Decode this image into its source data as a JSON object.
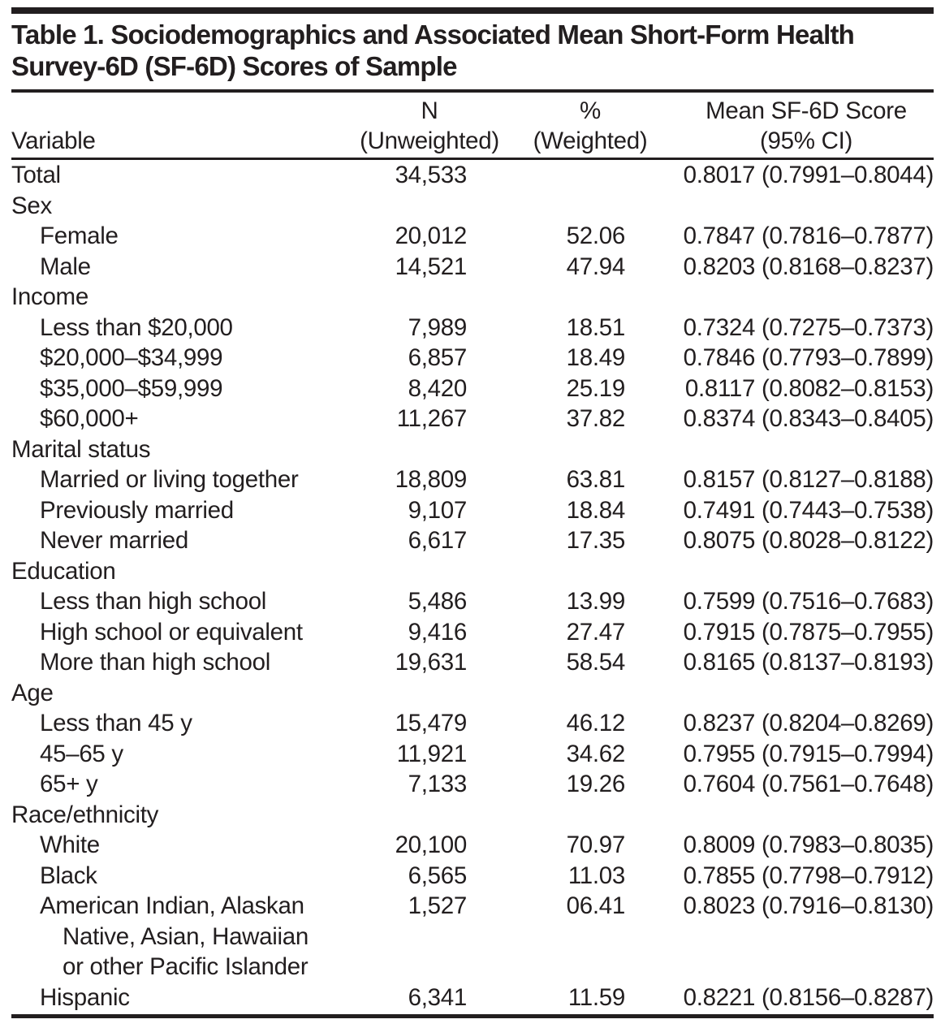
{
  "title": "Table 1. Sociodemographics and Associated Mean Short-Form Health\nSurvey-6D (SF-6D) Scores of Sample",
  "columns": {
    "variable": "Variable",
    "n": [
      "N",
      "(Unweighted)"
    ],
    "pct": [
      "%",
      "(Weighted)"
    ],
    "mean": [
      "Mean SF-6D Score",
      "(95% CI)"
    ]
  },
  "rows": [
    {
      "type": "total",
      "label": "Total",
      "n": "34,533",
      "pct": "",
      "ci": "0.8017 (0.7991–0.8044)"
    },
    {
      "type": "group",
      "label": "Sex",
      "n": "",
      "pct": "",
      "ci": ""
    },
    {
      "type": "item",
      "label": "Female",
      "n": "20,012",
      "pct": "52.06",
      "ci": "0.7847 (0.7816–0.7877)"
    },
    {
      "type": "item",
      "label": "Male",
      "n": "14,521",
      "pct": "47.94",
      "ci": "0.8203 (0.8168–0.8237)"
    },
    {
      "type": "group",
      "label": "Income",
      "n": "",
      "pct": "",
      "ci": ""
    },
    {
      "type": "item",
      "label": "Less than $20,000",
      "n": "7,989",
      "pct": "18.51",
      "ci": "0.7324 (0.7275–0.7373)"
    },
    {
      "type": "item",
      "label": "$20,000–$34,999",
      "n": "6,857",
      "pct": "18.49",
      "ci": "0.7846 (0.7793–0.7899)"
    },
    {
      "type": "item",
      "label": "$35,000–$59,999",
      "n": "8,420",
      "pct": "25.19",
      "ci": "0.8117 (0.8082–0.8153)"
    },
    {
      "type": "item",
      "label": "$60,000+",
      "n": "11,267",
      "pct": "37.82",
      "ci": "0.8374 (0.8343–0.8405)"
    },
    {
      "type": "group",
      "label": "Marital status",
      "n": "",
      "pct": "",
      "ci": ""
    },
    {
      "type": "item",
      "label": "Married or living together",
      "n": "18,809",
      "pct": "63.81",
      "ci": "0.8157 (0.8127–0.8188)"
    },
    {
      "type": "item",
      "label": "Previously married",
      "n": "9,107",
      "pct": "18.84",
      "ci": "0.7491 (0.7443–0.7538)"
    },
    {
      "type": "item",
      "label": "Never married",
      "n": "6,617",
      "pct": "17.35",
      "ci": "0.8075 (0.8028–0.8122)"
    },
    {
      "type": "group",
      "label": "Education",
      "n": "",
      "pct": "",
      "ci": ""
    },
    {
      "type": "item",
      "label": "Less than high school",
      "n": "5,486",
      "pct": "13.99",
      "ci": "0.7599 (0.7516–0.7683)"
    },
    {
      "type": "item",
      "label": "High school or equivalent",
      "n": "9,416",
      "pct": "27.47",
      "ci": "0.7915 (0.7875–0.7955)"
    },
    {
      "type": "item",
      "label": "More than high school",
      "n": "19,631",
      "pct": "58.54",
      "ci": "0.8165 (0.8137–0.8193)"
    },
    {
      "type": "group",
      "label": "Age",
      "n": "",
      "pct": "",
      "ci": ""
    },
    {
      "type": "item",
      "label": "Less than 45 y",
      "n": "15,479",
      "pct": "46.12",
      "ci": "0.8237 (0.8204–0.8269)"
    },
    {
      "type": "item",
      "label": "45–65 y",
      "n": "11,921",
      "pct": "34.62",
      "ci": "0.7955 (0.7915–0.7994)"
    },
    {
      "type": "item",
      "label": "65+ y",
      "n": "7,133",
      "pct": "19.26",
      "ci": "0.7604 (0.7561–0.7648)"
    },
    {
      "type": "group",
      "label": "Race/ethnicity",
      "n": "",
      "pct": "",
      "ci": ""
    },
    {
      "type": "item",
      "label": "White",
      "n": "20,100",
      "pct": "70.97",
      "ci": "0.8009 (0.7983–0.8035)"
    },
    {
      "type": "item",
      "label": "Black",
      "n": "6,565",
      "pct": "11.03",
      "ci": "0.7855 (0.7798–0.7912)"
    },
    {
      "type": "item",
      "label": "American Indian, Alaskan\nNative, Asian, Hawaiian\nor other Pacific Islander",
      "n": "1,527",
      "pct": "06.41",
      "ci": "0.8023 (0.7916–0.8130)"
    },
    {
      "type": "item",
      "label": "Hispanic",
      "n": "6,341",
      "pct": "11.59",
      "ci": "0.8221 (0.8156–0.8287)"
    }
  ],
  "colors": {
    "text": "#221e1f",
    "rule": "#221e1f",
    "background": "#ffffff"
  }
}
